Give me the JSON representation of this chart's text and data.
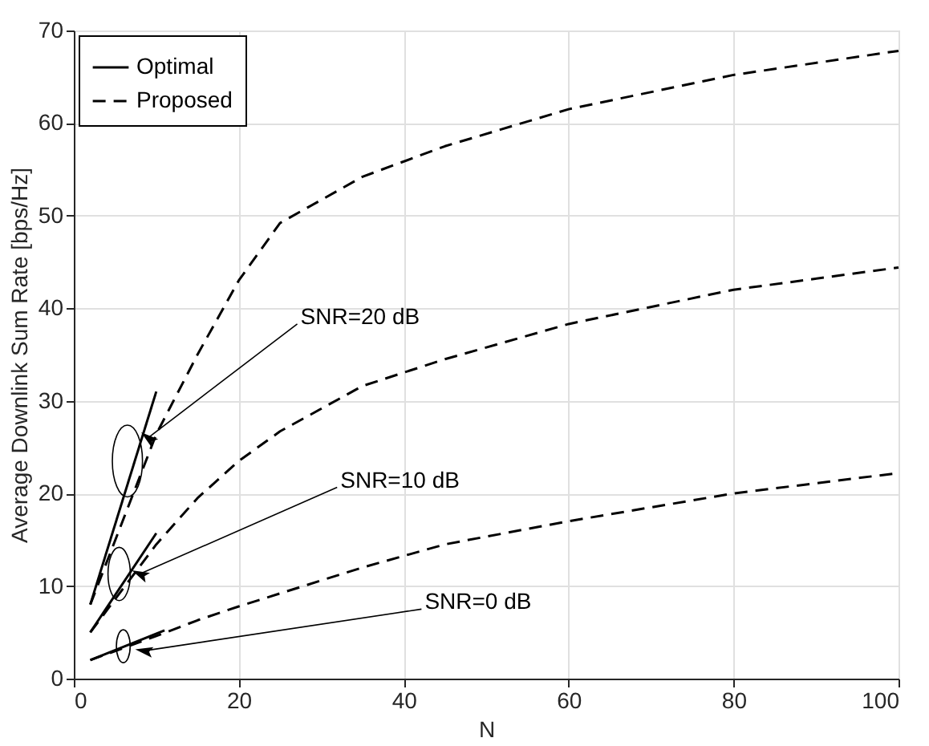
{
  "chart_data": {
    "type": "line",
    "xlabel": "N",
    "ylabel": "Average Downlink Sum Rate [bps/Hz]",
    "xlim": [
      0,
      100
    ],
    "xticks": [
      0,
      20,
      40,
      60,
      80,
      100
    ],
    "ylim": [
      0,
      70
    ],
    "yticks": [
      0,
      10,
      20,
      30,
      40,
      50,
      60,
      70
    ],
    "grid": true,
    "legend": "top left",
    "marker": "none",
    "series": [
      {
        "name": "Optimal",
        "color": "#000000",
        "line_style": "solid",
        "x": [
          2,
          10
        ],
        "values": [
          8,
          31
        ]
      },
      {
        "color": "#000000",
        "line_style": "solid",
        "x": [
          2,
          10
        ],
        "values": [
          5,
          15.7
        ]
      },
      {
        "color": "#000000",
        "line_style": "solid",
        "x": [
          2,
          11
        ],
        "values": [
          2,
          5.2
        ]
      },
      {
        "name": "Proposed",
        "color": "#000000",
        "line_style": "dashed",
        "x": [
          2,
          10,
          15,
          20,
          25,
          35,
          45,
          60,
          80,
          100
        ],
        "values": [
          8,
          26.4,
          35,
          43,
          49.2,
          54.2,
          57.5,
          61.5,
          65.2,
          67.8
        ]
      },
      {
        "color": "#000000",
        "line_style": "dashed",
        "x": [
          2,
          10,
          15,
          20,
          25,
          35,
          45,
          60,
          80,
          100
        ],
        "values": [
          5,
          14.5,
          19.5,
          23.5,
          26.7,
          31.6,
          34.5,
          38.3,
          42,
          44.4
        ]
      },
      {
        "color": "#000000",
        "line_style": "dashed",
        "x": [
          2,
          10,
          15,
          20,
          25,
          35,
          45,
          60,
          80,
          100
        ],
        "values": [
          2,
          4.6,
          6.3,
          7.8,
          9.2,
          12,
          14.5,
          17,
          20,
          22.2
        ]
      }
    ],
    "annotations": [
      {
        "text": "SNR=20 dB",
        "x": 9,
        "y": 26
      },
      {
        "text": "SNR=10 dB",
        "x": 8,
        "y": 11.3
      },
      {
        "text": "SNR=0 dB",
        "x": 8.5,
        "y": 3
      }
    ]
  }
}
